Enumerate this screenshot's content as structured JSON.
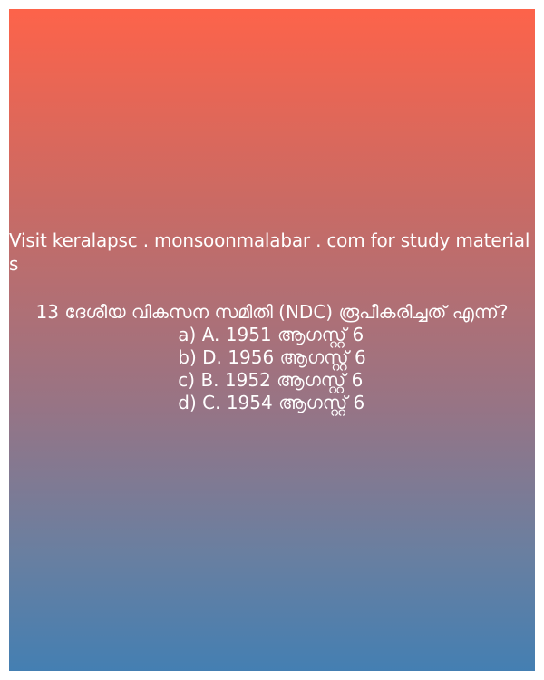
{
  "website_text": "Visit keralapsc . monsoonmalabar . com for study materials",
  "question": {
    "number": "1\u00183\u0019",
    "text": " ദേശീയ വികസന സമിതി (NDC) രൂപീകരിച്ചത് എന്ന്\u0019?"
  },
  "options": [
    "a) A. 1951 ആഗസ്റ്റ് 6",
    "b) D. 1956 ആഗസ്റ്റ് 6",
    "c) B. 1952 ആഗസ്റ്റ് 6",
    "d) C. 1954 ആഗസ്റ്റ് 6"
  ],
  "colors": {
    "gradient_top": "#fd634a",
    "gradient_bottom": "#447fb2",
    "text": "#ffffff"
  }
}
